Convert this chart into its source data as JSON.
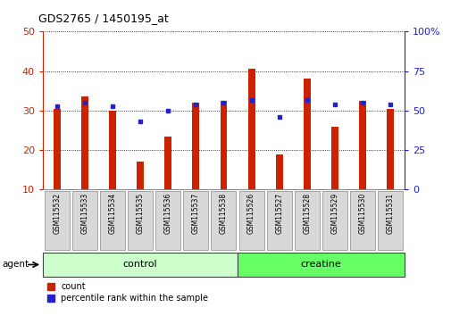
{
  "title": "GDS2765 / 1450195_at",
  "samples": [
    "GSM115532",
    "GSM115533",
    "GSM115534",
    "GSM115535",
    "GSM115536",
    "GSM115537",
    "GSM115538",
    "GSM115526",
    "GSM115527",
    "GSM115528",
    "GSM115529",
    "GSM115530",
    "GSM115531"
  ],
  "counts": [
    30.5,
    33.5,
    30.0,
    17.0,
    23.5,
    32.0,
    32.5,
    40.5,
    19.0,
    38.0,
    26.0,
    32.5,
    30.5
  ],
  "percentiles": [
    53,
    55,
    53,
    43,
    50,
    54,
    55,
    57,
    46,
    57,
    54,
    55,
    54
  ],
  "groups": [
    "control",
    "control",
    "control",
    "control",
    "control",
    "control",
    "control",
    "creatine",
    "creatine",
    "creatine",
    "creatine",
    "creatine",
    "creatine"
  ],
  "group_colors": {
    "control": "#ccffcc",
    "creatine": "#66ff66"
  },
  "bar_color": "#cc2200",
  "dot_color": "#2222cc",
  "ylim_left": [
    10,
    50
  ],
  "ylim_right": [
    0,
    100
  ],
  "yticks_left": [
    10,
    20,
    30,
    40,
    50
  ],
  "yticks_right": [
    0,
    25,
    50,
    75,
    100
  ],
  "ylabel_left_color": "#cc2200",
  "ylabel_right_color": "#2222cc",
  "bar_width": 0.25,
  "background_color": "#ffffff",
  "plot_bg_color": "#ffffff",
  "agent_label": "agent",
  "legend_count_label": "count",
  "legend_pct_label": "percentile rank within the sample"
}
